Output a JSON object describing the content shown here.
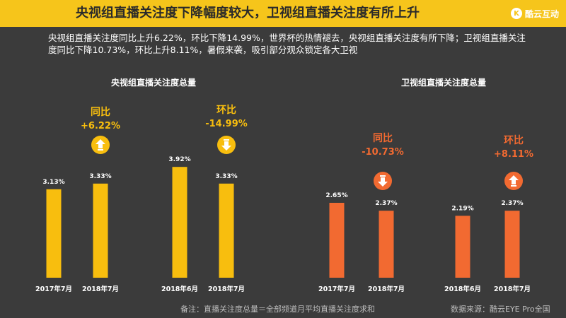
{
  "header": {
    "title": "央视组直播关注度下降幅度较大，卫视组直播关注度有所上升",
    "logo": "酷云互动",
    "logo_mark": "K"
  },
  "description": "央视组直播关注度同比上升6.22%，环比下降14.99%，世界杯的热情褪去，央视组直播关注度有所下降；卫视组直播关注度同比下降10.73%，环比上升8.11%，暑假来袭，吸引部分观众锁定各大卫视",
  "footer": {
    "note": "备注：直播关注度总量＝全部频道月平均直播关注度求和",
    "source": "数据来源：酷云EYE Pro全国"
  },
  "colors": {
    "cctv": "#f8be0e",
    "satellite": "#f26a31",
    "banner": "#f6c51b"
  },
  "chart_data": [
    {
      "type": "bar",
      "title": "央视组直播关注度总量",
      "categories": [
        "2017年7月",
        "2018年7月",
        "2018年6月",
        "2018年7月"
      ],
      "values": [
        3.13,
        3.33,
        3.92,
        3.33
      ],
      "value_labels": [
        "3.13%",
        "3.33%",
        "3.92%",
        "3.33%"
      ],
      "annotations": [
        {
          "label": "同比",
          "value": "+6.22%",
          "direction": "up"
        },
        {
          "label": "环比",
          "value": "-14.99%",
          "direction": "down"
        }
      ]
    },
    {
      "type": "bar",
      "title": "卫视组直播关注度总量",
      "categories": [
        "2017年7月",
        "2018年7月",
        "2018年6月",
        "2018年7月"
      ],
      "values": [
        2.65,
        2.37,
        2.19,
        2.37
      ],
      "value_labels": [
        "2.65%",
        "2.37%",
        "2.19%",
        "2.37%"
      ],
      "annotations": [
        {
          "label": "同比",
          "value": "-10.73%",
          "direction": "down"
        },
        {
          "label": "环比",
          "value": "+8.11%",
          "direction": "up"
        }
      ]
    }
  ]
}
